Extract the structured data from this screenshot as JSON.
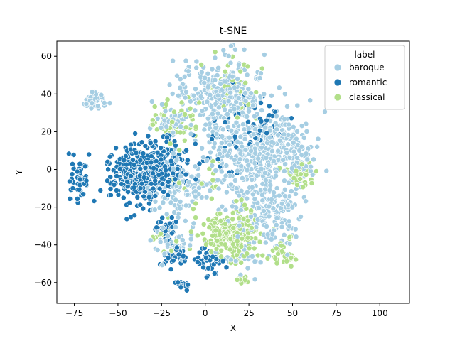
{
  "chart_data": {
    "type": "scatter",
    "title": "t-SNE",
    "xlabel": "X",
    "ylabel": "Y",
    "xlim": [
      -85,
      117
    ],
    "ylim": [
      -71,
      68
    ],
    "xticks": [
      -75,
      -50,
      -25,
      0,
      25,
      50,
      75,
      100
    ],
    "yticks": [
      -60,
      -40,
      -20,
      0,
      20,
      40,
      60
    ],
    "grid": false,
    "legend": {
      "title": "label",
      "placement": "top-right"
    },
    "series": [
      {
        "name": "baroque",
        "color": "#a6cee3",
        "clusters": [
          {
            "cx": -63,
            "cy": 37,
            "sx": 3,
            "sy": 2.5,
            "n": 45
          },
          {
            "cx": 10,
            "cy": 42,
            "sx": 14,
            "sy": 9,
            "n": 230
          },
          {
            "cx": 25,
            "cy": 5,
            "sx": 14,
            "sy": 16,
            "n": 420
          },
          {
            "cx": 38,
            "cy": -25,
            "sx": 9,
            "sy": 8,
            "n": 120
          },
          {
            "cx": 45,
            "cy": 15,
            "sx": 8,
            "sy": 7,
            "n": 90
          },
          {
            "cx": 55,
            "cy": 5,
            "sx": 4,
            "sy": 7,
            "n": 40
          },
          {
            "cx": -15,
            "cy": -10,
            "sx": 8,
            "sy": 9,
            "n": 90
          },
          {
            "cx": -20,
            "cy": 27,
            "sx": 5,
            "sy": 3,
            "n": 30
          },
          {
            "cx": -18,
            "cy": -40,
            "sx": 6,
            "sy": 4,
            "n": 50
          },
          {
            "cx": 20,
            "cy": -48,
            "sx": 6,
            "sy": 4,
            "n": 30
          }
        ]
      },
      {
        "name": "romantic",
        "color": "#1f78b4",
        "clusters": [
          {
            "cx": -37,
            "cy": -2,
            "sx": 9,
            "sy": 8,
            "n": 380
          },
          {
            "cx": -72,
            "cy": -6,
            "sx": 3,
            "sy": 5,
            "n": 55
          },
          {
            "cx": -20,
            "cy": 3,
            "sx": 5,
            "sy": 6,
            "n": 60
          },
          {
            "cx": -17,
            "cy": -45,
            "sx": 4,
            "sy": 3,
            "n": 45
          },
          {
            "cx": 3,
            "cy": -48,
            "sx": 4,
            "sy": 4,
            "n": 45
          },
          {
            "cx": -14,
            "cy": -61,
            "sx": 3,
            "sy": 1.2,
            "n": 15
          },
          {
            "cx": -23,
            "cy": -32,
            "sx": 4,
            "sy": 4,
            "n": 30
          },
          {
            "cx": 30,
            "cy": 25,
            "sx": 10,
            "sy": 10,
            "n": 40
          },
          {
            "cx": 10,
            "cy": 10,
            "sx": 10,
            "sy": 10,
            "n": 30
          }
        ]
      },
      {
        "name": "classical",
        "color": "#b2df8a",
        "clusters": [
          {
            "cx": 14,
            "cy": -35,
            "sx": 9,
            "sy": 6,
            "n": 220
          },
          {
            "cx": -18,
            "cy": 25,
            "sx": 6,
            "sy": 6,
            "n": 60
          },
          {
            "cx": 54,
            "cy": -3,
            "sx": 4,
            "sy": 4,
            "n": 40
          },
          {
            "cx": 45,
            "cy": -45,
            "sx": 4,
            "sy": 4,
            "n": 30
          },
          {
            "cx": 21,
            "cy": -59,
            "sx": 1.3,
            "sy": 1.5,
            "n": 12
          },
          {
            "cx": 15,
            "cy": 45,
            "sx": 8,
            "sy": 8,
            "n": 40
          },
          {
            "cx": -2,
            "cy": -5,
            "sx": 6,
            "sy": 6,
            "n": 15
          },
          {
            "cx": -25,
            "cy": -35,
            "sx": 4,
            "sy": 4,
            "n": 15
          }
        ]
      }
    ]
  }
}
